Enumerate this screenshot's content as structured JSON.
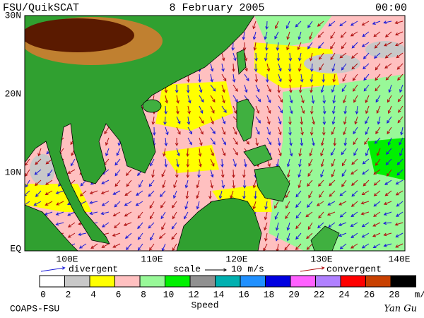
{
  "header": {
    "source": "FSU/QuikSCAT",
    "date": "8 February 2005",
    "time": "00:00"
  },
  "map": {
    "lat_labels": [
      "30N",
      "20N",
      "10N",
      "EQ"
    ],
    "lon_labels": [
      "100E",
      "110E",
      "120E",
      "130E",
      "140E"
    ]
  },
  "legend": {
    "divergent": "divergent",
    "scale": "scale",
    "scale_value": "10 m/s",
    "convergent": "convergent",
    "divergent_color": "#1a1ad8",
    "convergent_color": "#b01010"
  },
  "colorbar": {
    "labels": [
      "0",
      "2",
      "4",
      "6",
      "8",
      "10",
      "12",
      "14",
      "16",
      "18",
      "20",
      "22",
      "24",
      "26",
      "28"
    ],
    "unit": "m/s",
    "title": "Speed",
    "colors": [
      "#ffffff",
      "#c8c8c8",
      "#ffff00",
      "#ffc0c0",
      "#98f898",
      "#00f000",
      "#909090",
      "#00b0b0",
      "#2090ff",
      "#0000e0",
      "#ff60ff",
      "#b080ff",
      "#ff0000",
      "#c84000",
      "#000000"
    ]
  },
  "footer": {
    "left": "COAPS-FSU",
    "right": "Yan Gu"
  }
}
